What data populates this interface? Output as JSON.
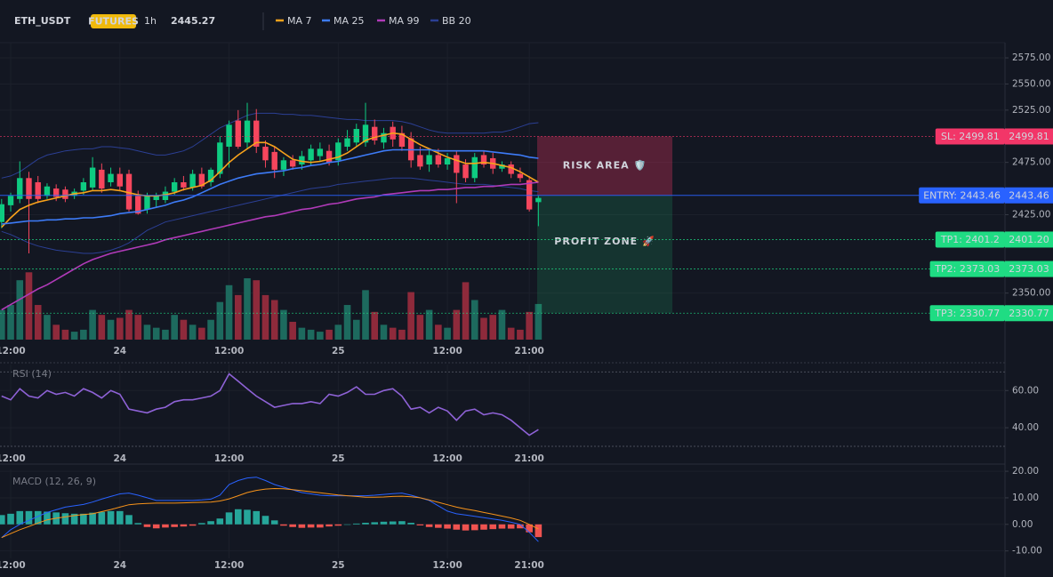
{
  "header": {
    "symbol": "ETH_USDT",
    "badge": "FUTURES",
    "interval": "1h",
    "price": 2445.27,
    "price_color": "#26d07c",
    "badge_color": "#f0b90b"
  },
  "chart_data": [
    {
      "type": "candlestick",
      "categories": [
        null,
        "12:00",
        null,
        null,
        null,
        null,
        null,
        null,
        null,
        null,
        null,
        null,
        null,
        "24",
        null,
        null,
        null,
        null,
        null,
        null,
        null,
        null,
        null,
        null,
        null,
        "12:00",
        null,
        null,
        null,
        null,
        null,
        null,
        null,
        null,
        null,
        null,
        null,
        "25",
        null,
        null,
        null,
        null,
        null,
        null,
        null,
        null,
        null,
        null,
        null,
        "12:00",
        null,
        null,
        null,
        null,
        null,
        null,
        null,
        null,
        "21:00",
        null
      ],
      "open": [
        2418,
        2434,
        2440,
        2460,
        2456,
        2443,
        2450,
        2449,
        2443,
        2448,
        2451,
        2468,
        2456,
        2464,
        2464,
        2443,
        2430,
        2439,
        2439,
        2447,
        2456,
        2451,
        2464,
        2456,
        2464,
        2490,
        2515,
        2494,
        2515,
        2490,
        2485,
        2468,
        2477,
        2473,
        2477,
        2481,
        2486,
        2477,
        2490,
        2494,
        2494,
        2509,
        2494,
        2509,
        2503,
        2498,
        2482,
        2473,
        2482,
        2473,
        2482,
        2473,
        2460,
        2482,
        2479,
        2469,
        2473,
        2464,
        2458,
        2437
      ],
      "high": [
        2440,
        2446,
        2476,
        2466,
        2462,
        2455,
        2454,
        2452,
        2450,
        2460,
        2480,
        2474,
        2470,
        2470,
        2468,
        2448,
        2446,
        2446,
        2452,
        2460,
        2462,
        2468,
        2470,
        2470,
        2500,
        2515,
        2525,
        2532,
        2526,
        2496,
        2490,
        2480,
        2482,
        2486,
        2492,
        2494,
        2492,
        2498,
        2506,
        2512,
        2532,
        2516,
        2508,
        2514,
        2510,
        2504,
        2490,
        2488,
        2488,
        2484,
        2486,
        2478,
        2484,
        2486,
        2484,
        2476,
        2476,
        2470,
        2462,
        2443
      ],
      "low": [
        2412,
        2428,
        2436,
        2388,
        2436,
        2440,
        2438,
        2437,
        2440,
        2444,
        2448,
        2446,
        2452,
        2448,
        2428,
        2425,
        2426,
        2432,
        2436,
        2444,
        2448,
        2448,
        2450,
        2452,
        2460,
        2470,
        2488,
        2488,
        2484,
        2470,
        2460,
        2462,
        2468,
        2468,
        2472,
        2476,
        2472,
        2472,
        2486,
        2490,
        2490,
        2492,
        2488,
        2490,
        2486,
        2470,
        2468,
        2466,
        2470,
        2468,
        2436,
        2456,
        2456,
        2470,
        2464,
        2466,
        2460,
        2456,
        2428,
        2414
      ],
      "close": [
        2435,
        2443,
        2460,
        2440,
        2440,
        2452,
        2442,
        2440,
        2447,
        2456,
        2470,
        2450,
        2464,
        2452,
        2430,
        2426,
        2443,
        2443,
        2447,
        2456,
        2451,
        2464,
        2452,
        2468,
        2494,
        2511,
        2490,
        2515,
        2490,
        2477,
        2468,
        2477,
        2471,
        2481,
        2488,
        2488,
        2475,
        2494,
        2498,
        2507,
        2511,
        2496,
        2503,
        2497,
        2490,
        2477,
        2471,
        2482,
        2473,
        2479,
        2465,
        2460,
        2480,
        2473,
        2469,
        2473,
        2464,
        2460,
        2430,
        2441
      ],
      "up_color": "#0ecb81",
      "down_color": "#f6465d",
      "overlays": [
        {
          "name": "MA 7",
          "color": "#f7a21b",
          "values": [
            2413,
            2422,
            2430,
            2434,
            2437,
            2439,
            2441,
            2443,
            2445,
            2446,
            2448,
            2448,
            2449,
            2448,
            2446,
            2444,
            2443,
            2443,
            2444,
            2446,
            2449,
            2451,
            2453,
            2458,
            2466,
            2475,
            2482,
            2488,
            2494,
            2494,
            2490,
            2484,
            2478,
            2476,
            2475,
            2476,
            2478,
            2480,
            2484,
            2490,
            2496,
            2499,
            2501,
            2503,
            2502,
            2497,
            2492,
            2488,
            2484,
            2480,
            2477,
            2474,
            2474,
            2475,
            2474,
            2472,
            2470,
            2466,
            2461,
            2456
          ]
        },
        {
          "name": "MA 25",
          "color": "#3d7bf7",
          "values": [
            2416,
            2417,
            2418,
            2419,
            2419,
            2420,
            2420,
            2421,
            2421,
            2422,
            2422,
            2423,
            2424,
            2426,
            2427,
            2428,
            2430,
            2432,
            2434,
            2437,
            2439,
            2442,
            2446,
            2450,
            2454,
            2457,
            2460,
            2462,
            2464,
            2465,
            2466,
            2467,
            2469,
            2470,
            2472,
            2473,
            2475,
            2476,
            2478,
            2480,
            2482,
            2484,
            2486,
            2487,
            2487,
            2487,
            2487,
            2487,
            2486,
            2486,
            2486,
            2486,
            2486,
            2486,
            2485,
            2484,
            2483,
            2482,
            2480,
            2479
          ]
        },
        {
          "name": "MA 99",
          "color": "#b03ab8",
          "values": [
            2334,
            2339,
            2344,
            2349,
            2354,
            2358,
            2363,
            2368,
            2373,
            2378,
            2382,
            2385,
            2388,
            2390,
            2392,
            2394,
            2396,
            2398,
            2401,
            2403,
            2405,
            2407,
            2409,
            2411,
            2413,
            2415,
            2417,
            2419,
            2421,
            2423,
            2424,
            2426,
            2428,
            2430,
            2431,
            2433,
            2435,
            2436,
            2438,
            2440,
            2441,
            2442,
            2444,
            2445,
            2446,
            2447,
            2448,
            2448,
            2449,
            2449,
            2450,
            2451,
            2451,
            2452,
            2452,
            2453,
            2454,
            2454,
            2455,
            2456
          ]
        },
        {
          "name": "BB 20",
          "color": "#2b3f94",
          "upper": [
            2460,
            2462,
            2466,
            2472,
            2478,
            2482,
            2484,
            2486,
            2487,
            2488,
            2488,
            2490,
            2490,
            2489,
            2488,
            2486,
            2484,
            2482,
            2482,
            2484,
            2486,
            2490,
            2496,
            2502,
            2508,
            2512,
            2516,
            2520,
            2522,
            2522,
            2522,
            2521,
            2521,
            2520,
            2520,
            2519,
            2518,
            2517,
            2516,
            2516,
            2515,
            2515,
            2515,
            2515,
            2514,
            2512,
            2509,
            2506,
            2504,
            2503,
            2503,
            2503,
            2503,
            2503,
            2504,
            2504,
            2506,
            2509,
            2512,
            2513
          ],
          "lower": [
            2409,
            2406,
            2402,
            2398,
            2395,
            2393,
            2391,
            2390,
            2389,
            2388,
            2388,
            2389,
            2391,
            2394,
            2398,
            2404,
            2410,
            2414,
            2418,
            2420,
            2422,
            2424,
            2426,
            2428,
            2430,
            2432,
            2434,
            2436,
            2438,
            2440,
            2442,
            2444,
            2446,
            2448,
            2450,
            2451,
            2452,
            2454,
            2455,
            2456,
            2457,
            2458,
            2459,
            2460,
            2460,
            2460,
            2459,
            2458,
            2457,
            2456,
            2455,
            2454,
            2454,
            2454,
            2453,
            2452,
            2451,
            2450,
            2448,
            2447
          ]
        }
      ],
      "volume": {
        "values": [
          30,
          35,
          60,
          68,
          35,
          25,
          15,
          10,
          8,
          10,
          30,
          25,
          20,
          22,
          30,
          25,
          15,
          12,
          10,
          25,
          20,
          15,
          12,
          20,
          38,
          55,
          45,
          62,
          60,
          45,
          40,
          30,
          18,
          12,
          10,
          8,
          10,
          15,
          35,
          20,
          50,
          28,
          15,
          12,
          10,
          48,
          25,
          30,
          15,
          12,
          30,
          58,
          40,
          22,
          25,
          30,
          12,
          10,
          28,
          36
        ],
        "ylim": [
          0,
          300
        ],
        "up_color": "#1d6a5e",
        "down_color": "#8e2a3b"
      },
      "ylim": [
        2305.5,
        2589.5
      ],
      "yticks": [
        {
          "value": 2575,
          "label": "2575.00"
        },
        {
          "value": 2550,
          "label": "2550.00"
        },
        {
          "value": 2525,
          "label": "2525.00"
        },
        {
          "value": 2475,
          "label": "2475.00"
        },
        {
          "value": 2425,
          "label": "2425.00"
        },
        {
          "value": 2350,
          "label": "2350.00"
        }
      ],
      "levels": [
        {
          "value": 2499.81,
          "label": "SL: 2499.81",
          "price_label": "2499.81",
          "color": "#f23668",
          "text_color": "#ffffff"
        },
        {
          "value": 2443.46,
          "label": "ENTRY: 2443.46",
          "price_label": "2443.46",
          "color": "#2962ff",
          "text_color": "#ffffff"
        },
        {
          "value": 2401.2,
          "label": "TP1: 2401.2",
          "price_label": "2401.20",
          "color": "#1fdc83",
          "text_color": "#0b1a12"
        },
        {
          "value": 2373.03,
          "label": "TP2: 2373.03",
          "price_label": "2373.03",
          "color": "#1fdc83",
          "text_color": "#0b1a12"
        },
        {
          "value": 2330.77,
          "label": "TP3: 2330.77",
          "price_label": "2330.77",
          "color": "#1fdc83",
          "text_color": "#0b1a12"
        }
      ],
      "zones": [
        {
          "label": "RISK AREA 🛡️",
          "color": "#f23668"
        },
        {
          "label": "PROFIT ZONE 🚀",
          "color": "#26d07c"
        }
      ]
    },
    {
      "type": "line",
      "title": "RSI (14)",
      "series": [
        {
          "color": "#8e62d6",
          "values": [
            57,
            55,
            61,
            57,
            56,
            60,
            58,
            59,
            57,
            61,
            59,
            56,
            60,
            58,
            50,
            49,
            48,
            50,
            51,
            54,
            55,
            55,
            56,
            57,
            60,
            69,
            65,
            61,
            57,
            54,
            51,
            52,
            53,
            53,
            54,
            53,
            58,
            57,
            59,
            62,
            58,
            58,
            60,
            61,
            57,
            50,
            51,
            48,
            51,
            49,
            44,
            49,
            50,
            47,
            48,
            47,
            44,
            40,
            36,
            39
          ]
        }
      ],
      "levels": [
        70,
        30
      ],
      "ylim": [
        30,
        74
      ],
      "yticks": [
        {
          "value": 60,
          "label": "60.00"
        },
        {
          "value": 40,
          "label": "40.00"
        }
      ]
    },
    {
      "type": "macd",
      "title": "MACD (12, 26, 9)",
      "series": [
        {
          "color": "#2962ff",
          "values": [
            -5,
            -2,
            0,
            1.5,
            3,
            4.5,
            5.5,
            6.5,
            7,
            7.5,
            8.4,
            9.5,
            10.5,
            11.5,
            11.8,
            11,
            10,
            9,
            9,
            9,
            9,
            9,
            9.2,
            9.5,
            11,
            15,
            16.5,
            17.5,
            17.8,
            16.5,
            15,
            14,
            13,
            12,
            11.5,
            11,
            10.8,
            10.8,
            10.8,
            10.8,
            10.8,
            11,
            11.3,
            11.6,
            11.8,
            11,
            10,
            9,
            7,
            5,
            4,
            3.5,
            3,
            2.5,
            2,
            1.5,
            0.8,
            0,
            -3,
            -6.5
          ]
        },
        {
          "color": "#f7931a",
          "values": [
            -5,
            -3.5,
            -2,
            -0.8,
            0.5,
            1.7,
            2.3,
            2.8,
            3.3,
            3.7,
            4,
            4.8,
            5.6,
            6.5,
            7.4,
            7.7,
            7.9,
            8,
            8,
            8,
            8.1,
            8.2,
            8.3,
            8.4,
            8.8,
            9.6,
            10.8,
            12,
            12.8,
            13.3,
            13.5,
            13.4,
            13.1,
            12.7,
            12.3,
            11.9,
            11.5,
            11.1,
            10.8,
            10.5,
            10.2,
            10.2,
            10.3,
            10.5,
            10.6,
            10.4,
            10,
            9.2,
            8.3,
            7.4,
            6.5,
            5.8,
            5.2,
            4.5,
            3.8,
            3.1,
            2.4,
            1.5,
            0,
            -1.7
          ]
        }
      ],
      "histogram": {
        "values": [
          3.5,
          4,
          5,
          5,
          5,
          4.8,
          4.5,
          4.2,
          4,
          4,
          4.4,
          4.7,
          5,
          5,
          3.5,
          0.5,
          -1,
          -1.5,
          -1.2,
          -1,
          -0.8,
          -0.5,
          0.5,
          1.2,
          2.2,
          4.5,
          5.7,
          5.5,
          5,
          3.2,
          1.5,
          -0.5,
          -1,
          -1.3,
          -1.2,
          -1.2,
          -0.8,
          -0.5,
          0,
          0.3,
          0.6,
          0.8,
          1,
          1.1,
          1.2,
          0.6,
          -0.4,
          -1,
          -1.3,
          -1.6,
          -2,
          -2.3,
          -2.2,
          -2,
          -1.8,
          -1.6,
          -1.6,
          -1.5,
          -3,
          -4.8
        ],
        "up_color": "#26a69a",
        "down_color": "#ef5350"
      },
      "ylim": [
        -12.8,
        20.7
      ],
      "yticks": [
        {
          "value": 20,
          "label": "20.00"
        },
        {
          "value": 10,
          "label": "10.00"
        },
        {
          "value": 0,
          "label": "0.00"
        },
        {
          "value": -10,
          "label": "-10.00"
        }
      ]
    }
  ]
}
